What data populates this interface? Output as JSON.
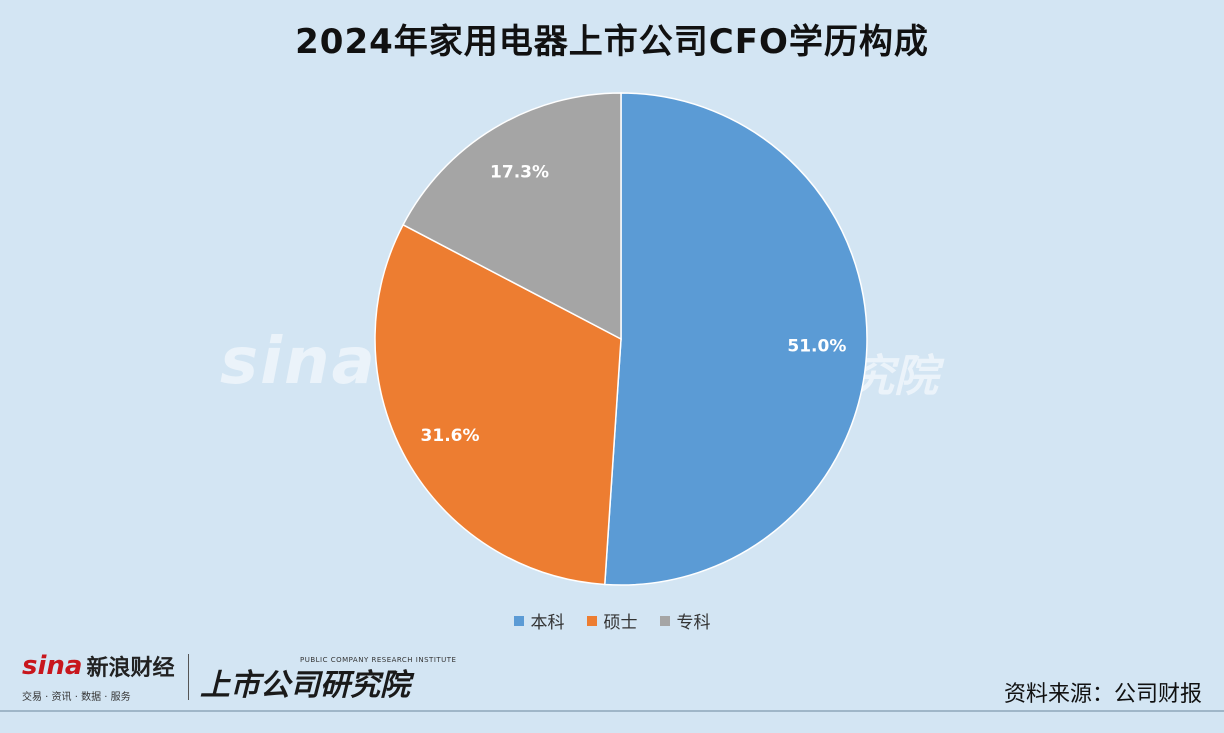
{
  "chart_data": {
    "type": "pie",
    "title": "2024年家用电器上市公司CFO学历构成",
    "categories": [
      "本科",
      "硕士",
      "专科"
    ],
    "values": [
      51.0,
      31.6,
      17.3
    ],
    "data_labels": [
      "51.0%",
      "31.6%",
      "17.3%"
    ],
    "colors": [
      "#5b9bd5",
      "#ed7d31",
      "#a5a5a5"
    ],
    "legend_position": "bottom",
    "start_angle_deg": 0,
    "direction": "clockwise"
  },
  "watermark": {
    "brand": "sina 新",
    "sub": "交易 · 资讯",
    "right": "究院"
  },
  "footer": {
    "brand": "sina",
    "brand_cn": "新浪财经",
    "brand_sub": "交易 · 资讯 · 数据 · 服务",
    "research": "上市公司研究院",
    "research_en": "PUBLIC COMPANY RESEARCH INSTITUTE",
    "source": "资料来源：公司财报"
  }
}
